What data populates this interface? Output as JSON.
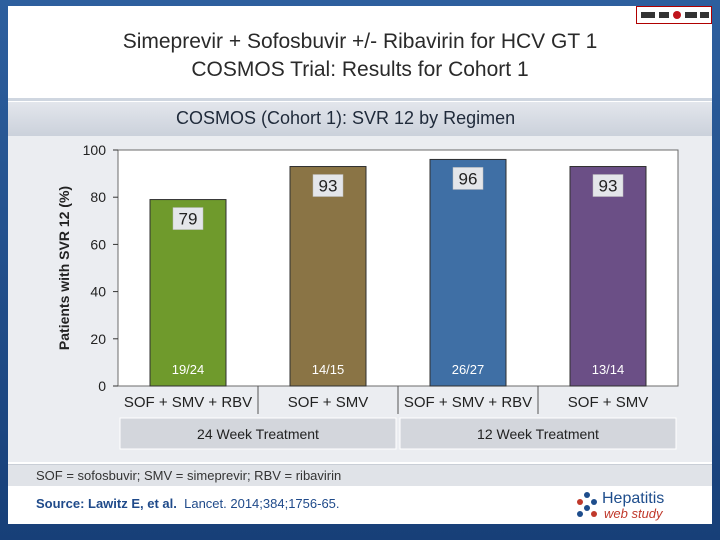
{
  "slide": {
    "title_line1": "Simeprevir + Sofosbuvir +/- Ribavirin for HCV GT 1",
    "title_line2": "COSMOS Trial: Results for Cohort 1",
    "banner": "COSMOS (Cohort 1): SVR 12 by Regimen",
    "footnote": "SOF = sofosbuvir; SMV = simeprevir; RBV = ribavirin",
    "source_label": "Source: Lawitz E, et al.",
    "source_citation": "Lancet. 2014;384;1756-65.",
    "logo_name": "Hepatitis",
    "logo_sub": "web study"
  },
  "chart_data": {
    "type": "bar",
    "title": "COSMOS (Cohort 1): SVR 12 by Regimen",
    "ylabel": "Patients with SVR 12 (%)",
    "xlabel": "",
    "ylim": [
      0,
      100
    ],
    "yticks": [
      0,
      20,
      40,
      60,
      80,
      100
    ],
    "grid": false,
    "categories": [
      "SOF + SMV + RBV",
      "SOF + SMV",
      "SOF + SMV + RBV",
      "SOF + SMV"
    ],
    "values": [
      79,
      93,
      96,
      93
    ],
    "value_labels": [
      "79",
      "93",
      "96",
      "93"
    ],
    "counts": [
      "19/24",
      "14/15",
      "26/27",
      "13/14"
    ],
    "colors": [
      "#6f9a2c",
      "#8a7445",
      "#3f6fa5",
      "#6b4f86"
    ],
    "groups": [
      {
        "label": "24 Week Treatment",
        "span": [
          0,
          1
        ]
      },
      {
        "label": "12 Week Treatment",
        "span": [
          2,
          3
        ]
      }
    ]
  }
}
